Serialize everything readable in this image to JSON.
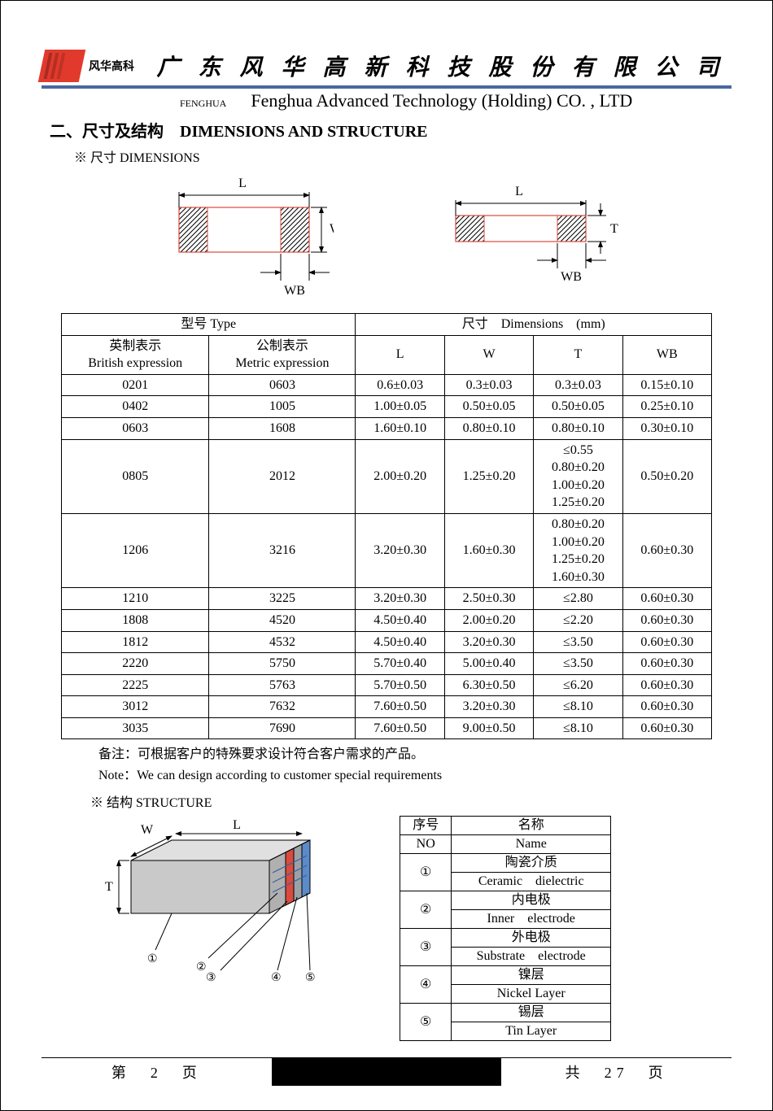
{
  "colors": {
    "accent_blue": "#4968A0",
    "logo_red": "#E13A2C",
    "electrode_red": "#D94B3E",
    "electrode_blue": "#5B8BC9",
    "body_gray": "#C9C9C9",
    "text": "#000000",
    "bg": "#ffffff"
  },
  "fonts": {
    "serif": "Times New Roman / SimSun",
    "title_size_pt": 20,
    "body_size_pt": 16
  },
  "header": {
    "logo_text": "风华高科",
    "company_cn": "广 东 风 华 高 新 科 技 股 份 有 限 公 司",
    "fenghua_label": "FENGHUA",
    "company_en": "Fenghua Advanced Technology (Holding) CO. , LTD"
  },
  "section": {
    "title": "二、尺寸及结构 DIMENSIONS AND STRUCTURE",
    "sub_dimensions": "※ 尺寸 DIMENSIONS",
    "sub_structure": "※ 结构 STRUCTURE"
  },
  "diagram_labels": {
    "L": "L",
    "W": "W",
    "T": "T",
    "WB": "WB"
  },
  "dim_table": {
    "head1_type": "型号 Type",
    "head1_dim": "尺寸 Dimensions (mm)",
    "head2_british_cn": "英制表示",
    "head2_british_en": "British expression",
    "head2_metric_cn": "公制表示",
    "head2_metric_en": "Metric expression",
    "col_L": "L",
    "col_W": "W",
    "col_T": "T",
    "col_WB": "WB",
    "rows": [
      {
        "b": "0201",
        "m": "0603",
        "L": "0.6±0.03",
        "W": "0.3±0.03",
        "T": "0.3±0.03",
        "WB": "0.15±0.10"
      },
      {
        "b": "0402",
        "m": "1005",
        "L": "1.00±0.05",
        "W": "0.50±0.05",
        "T": "0.50±0.05",
        "WB": "0.25±0.10"
      },
      {
        "b": "0603",
        "m": "1608",
        "L": "1.60±0.10",
        "W": "0.80±0.10",
        "T": "0.80±0.10",
        "WB": "0.30±0.10"
      },
      {
        "b": "0805",
        "m": "2012",
        "L": "2.00±0.20",
        "W": "1.25±0.20",
        "T": "≤0.55\n0.80±0.20\n1.00±0.20\n1.25±0.20",
        "WB": "0.50±0.20"
      },
      {
        "b": "1206",
        "m": "3216",
        "L": "3.20±0.30",
        "W": "1.60±0.30",
        "T": "0.80±0.20\n1.00±0.20\n1.25±0.20\n1.60±0.30",
        "WB": "0.60±0.30"
      },
      {
        "b": "1210",
        "m": "3225",
        "L": "3.20±0.30",
        "W": "2.50±0.30",
        "T": "≤2.80",
        "WB": "0.60±0.30"
      },
      {
        "b": "1808",
        "m": "4520",
        "L": "4.50±0.40",
        "W": "2.00±0.20",
        "T": "≤2.20",
        "WB": "0.60±0.30"
      },
      {
        "b": "1812",
        "m": "4532",
        "L": "4.50±0.40",
        "W": "3.20±0.30",
        "T": "≤3.50",
        "WB": "0.60±0.30"
      },
      {
        "b": "2220",
        "m": "5750",
        "L": "5.70±0.40",
        "W": "5.00±0.40",
        "T": "≤3.50",
        "WB": "0.60±0.30"
      },
      {
        "b": "2225",
        "m": "5763",
        "L": "5.70±0.50",
        "W": "6.30±0.50",
        "T": "≤6.20",
        "WB": "0.60±0.30"
      },
      {
        "b": "3012",
        "m": "7632",
        "L": "7.60±0.50",
        "W": "3.20±0.30",
        "T": "≤8.10",
        "WB": "0.60±0.30"
      },
      {
        "b": "3035",
        "m": "7690",
        "L": "7.60±0.50",
        "W": "9.00±0.50",
        "T": "≤8.10",
        "WB": "0.60±0.30"
      }
    ]
  },
  "notes": {
    "cn": "备注：可根据客户的特殊要求设计符合客户需求的产品。",
    "en": "Note：We can design according to customer special requirements"
  },
  "structure_table": {
    "head_no_cn": "序号",
    "head_no_en": "NO",
    "head_name_cn": "名称",
    "head_name_en": "Name",
    "rows": [
      {
        "no": "①",
        "cn": "陶瓷介质",
        "en": "Ceramic dielectric"
      },
      {
        "no": "②",
        "cn": "内电极",
        "en": "Inner electrode"
      },
      {
        "no": "③",
        "cn": "外电极",
        "en": "Substrate electrode"
      },
      {
        "no": "④",
        "cn": "镍层",
        "en": "Nickel Layer"
      },
      {
        "no": "⑤",
        "cn": "锡层",
        "en": "Tin Layer"
      }
    ]
  },
  "structure_callouts": {
    "c1": "①",
    "c2": "②",
    "c3": "③",
    "c4": "④",
    "c5": "⑤"
  },
  "footer": {
    "page_label_left": "第 2 页",
    "page_label_right": "共 27 页",
    "current_page": 2,
    "total_pages": 27
  }
}
